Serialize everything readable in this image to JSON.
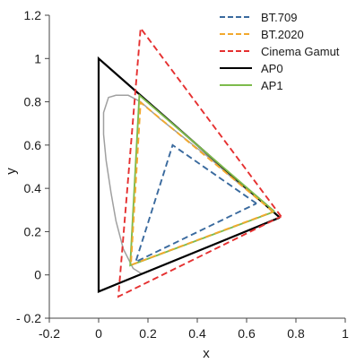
{
  "chart_data": {
    "type": "line",
    "xlabel": "x",
    "ylabel": "y",
    "xlim": [
      -0.2,
      1.0
    ],
    "ylim": [
      -0.2,
      1.2
    ],
    "xticks": [
      -0.2,
      0,
      0.2,
      0.4,
      0.6,
      0.8,
      1.0
    ],
    "xtick_labels": [
      "-0.2",
      "0",
      "0.2",
      "0.4",
      "0.6",
      "0.8",
      "1"
    ],
    "yticks": [
      -0.2,
      0,
      0.2,
      0.4,
      0.6,
      0.8,
      1.0,
      1.2
    ],
    "ytick_labels": [
      "- 0.2",
      "0",
      "0.2",
      "0.4",
      "0.6",
      "0.8",
      "1",
      "1.2"
    ],
    "grid": false,
    "legend_position": "top-right",
    "series": [
      {
        "name": "BT.709",
        "color": "#3a6a9e",
        "dash": "dashed",
        "points": [
          [
            0.64,
            0.33
          ],
          [
            0.3,
            0.6
          ],
          [
            0.15,
            0.06
          ],
          [
            0.64,
            0.33
          ]
        ]
      },
      {
        "name": "BT.2020",
        "color": "#f2a92e",
        "dash": "dashed",
        "points": [
          [
            0.708,
            0.292
          ],
          [
            0.17,
            0.797
          ],
          [
            0.131,
            0.046
          ],
          [
            0.708,
            0.292
          ]
        ]
      },
      {
        "name": "Cinema Gamut",
        "color": "#e53030",
        "dash": "dashed",
        "points": [
          [
            0.74,
            0.27
          ],
          [
            0.17,
            1.14
          ],
          [
            0.08,
            -0.1
          ],
          [
            0.74,
            0.27
          ]
        ]
      },
      {
        "name": "AP0",
        "color": "#000000",
        "dash": "solid",
        "points": [
          [
            0.7347,
            0.2653
          ],
          [
            0.0,
            1.0
          ],
          [
            0.0001,
            -0.077
          ],
          [
            0.7347,
            0.2653
          ]
        ]
      },
      {
        "name": "AP1",
        "color": "#7dbb4c",
        "dash": "solid",
        "points": [
          [
            0.713,
            0.293
          ],
          [
            0.165,
            0.83
          ],
          [
            0.128,
            0.044
          ],
          [
            0.713,
            0.293
          ]
        ]
      }
    ],
    "spectral_locus": {
      "color": "#a0a0a0",
      "points": [
        [
          0.175,
          0.005
        ],
        [
          0.14,
          0.03
        ],
        [
          0.1,
          0.12
        ],
        [
          0.07,
          0.25
        ],
        [
          0.05,
          0.38
        ],
        [
          0.03,
          0.53
        ],
        [
          0.02,
          0.65
        ],
        [
          0.02,
          0.75
        ],
        [
          0.04,
          0.82
        ],
        [
          0.07,
          0.83
        ],
        [
          0.12,
          0.83
        ],
        [
          0.17,
          0.8
        ],
        [
          0.25,
          0.72
        ],
        [
          0.35,
          0.63
        ],
        [
          0.45,
          0.54
        ],
        [
          0.55,
          0.44
        ],
        [
          0.65,
          0.35
        ],
        [
          0.7347,
          0.2653
        ]
      ]
    }
  }
}
